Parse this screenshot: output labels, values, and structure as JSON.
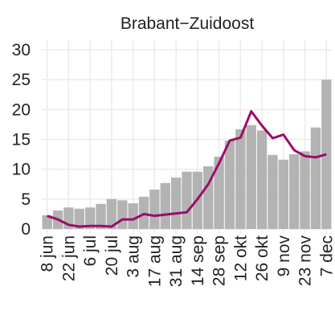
{
  "chart_data": {
    "type": "bar_line",
    "title": "Brabant−Zuidoost",
    "categories": [
      "8 jun",
      null,
      "22 jun",
      null,
      "6 jul",
      null,
      "20 jul",
      null,
      "3 aug",
      null,
      "17 aug",
      null,
      "31 aug",
      null,
      "14 sep",
      null,
      "28 sep",
      null,
      "12 okt",
      null,
      "26 okt",
      null,
      "9 nov",
      null,
      "23 nov",
      null,
      "7 dec"
    ],
    "series": [
      {
        "type": "bar",
        "color": "#b3b3b3",
        "values": [
          2.3,
          3.1,
          3.6,
          3.4,
          3.6,
          4.2,
          5.0,
          4.8,
          4.3,
          5.4,
          6.6,
          7.7,
          8.6,
          9.6,
          9.6,
          10.5,
          12.1,
          14.8,
          16.7,
          17.4,
          16.5,
          12.4,
          11.6,
          12.5,
          13.0,
          17.0,
          25.0
        ]
      },
      {
        "type": "line",
        "color": "#9b0d68",
        "values": [
          2.2,
          1.6,
          0.7,
          0.4,
          0.5,
          0.5,
          0.4,
          1.6,
          1.6,
          2.5,
          2.2,
          2.4,
          2.6,
          2.8,
          5,
          7.5,
          11,
          14.8,
          15.3,
          19.7,
          17.3,
          15.2,
          15.8,
          13.2,
          12.2,
          12.0,
          12.5
        ]
      }
    ],
    "ylim": [
      0,
      30
    ],
    "yticks": [
      0,
      5,
      10,
      15,
      20,
      25,
      30
    ],
    "grid": true
  }
}
